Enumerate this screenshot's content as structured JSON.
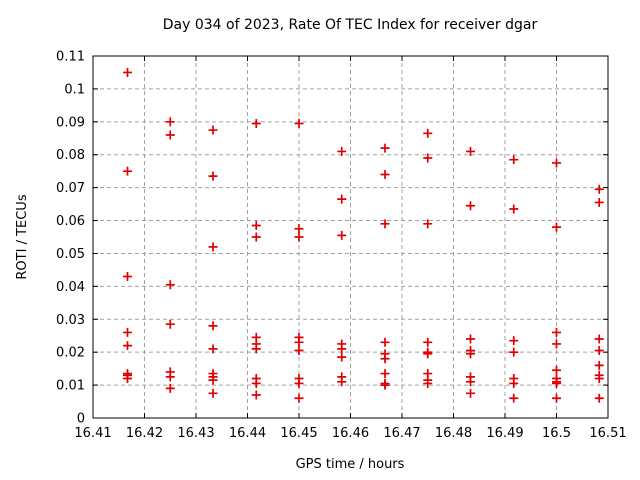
{
  "chart_data": {
    "type": "scatter",
    "title": "Day 034 of 2023, Rate Of TEC Index for receiver dgar",
    "xlabel": "GPS time / hours",
    "ylabel": "ROTI / TECUs",
    "xlim": [
      16.41,
      16.51
    ],
    "ylim": [
      0,
      0.11
    ],
    "xtick_values": [
      16.41,
      16.42,
      16.43,
      16.44,
      16.45,
      16.46,
      16.47,
      16.48,
      16.49,
      16.5,
      16.51
    ],
    "xtick_labels": [
      "16.41",
      "16.42",
      "16.43",
      "16.44",
      "16.45",
      "16.46",
      "16.47",
      "16.48",
      "16.49",
      "16.5",
      "16.51"
    ],
    "ytick_values": [
      0,
      0.01,
      0.02,
      0.03,
      0.04,
      0.05,
      0.06,
      0.07,
      0.08,
      0.09,
      0.1,
      0.11
    ],
    "ytick_labels": [
      "0",
      "0.01",
      "0.02",
      "0.03",
      "0.04",
      "0.05",
      "0.06",
      "0.07",
      "0.08",
      "0.09",
      "0.1",
      "0.11"
    ],
    "grid": true,
    "legend": "none",
    "marker": {
      "shape": "plus",
      "color": "#e10000"
    },
    "series": [
      {
        "name": "ROTI",
        "groups": [
          {
            "t": 16.4167,
            "values": [
              0.105,
              0.075,
              0.043,
              0.026,
              0.022,
              0.0135,
              0.013,
              0.012
            ]
          },
          {
            "t": 16.425,
            "values": [
              0.09,
              0.086,
              0.0405,
              0.0285,
              0.014,
              0.0125,
              0.009
            ]
          },
          {
            "t": 16.4333,
            "values": [
              0.0875,
              0.0735,
              0.052,
              0.028,
              0.021,
              0.0135,
              0.0125,
              0.0115,
              0.0075
            ]
          },
          {
            "t": 16.4417,
            "values": [
              0.0895,
              0.0585,
              0.055,
              0.0245,
              0.0225,
              0.021,
              0.012,
              0.0105,
              0.007
            ]
          },
          {
            "t": 16.45,
            "values": [
              0.0895,
              0.0575,
              0.055,
              0.0245,
              0.023,
              0.0205,
              0.012,
              0.0105,
              0.006
            ]
          },
          {
            "t": 16.4583,
            "values": [
              0.081,
              0.0665,
              0.0555,
              0.0225,
              0.021,
              0.0185,
              0.0125,
              0.011
            ]
          },
          {
            "t": 16.4667,
            "values": [
              0.082,
              0.074,
              0.059,
              0.023,
              0.0195,
              0.018,
              0.0135,
              0.0105,
              0.01
            ]
          },
          {
            "t": 16.475,
            "values": [
              0.0865,
              0.079,
              0.059,
              0.023,
              0.02,
              0.0195,
              0.0135,
              0.0115,
              0.0105
            ]
          },
          {
            "t": 16.4833,
            "values": [
              0.081,
              0.0645,
              0.024,
              0.0205,
              0.0195,
              0.0125,
              0.011,
              0.0075
            ]
          },
          {
            "t": 16.4917,
            "values": [
              0.0785,
              0.0635,
              0.0235,
              0.02,
              0.012,
              0.0105,
              0.006
            ]
          },
          {
            "t": 16.5,
            "values": [
              0.0775,
              0.058,
              0.026,
              0.0225,
              0.0145,
              0.012,
              0.011,
              0.0105,
              0.006
            ]
          },
          {
            "t": 16.5083,
            "values": [
              0.0695,
              0.0655,
              0.024,
              0.0205,
              0.016,
              0.013,
              0.012,
              0.006
            ]
          }
        ]
      }
    ]
  },
  "colors": {
    "marker": "#e10000",
    "grid": "#a0a0a0",
    "axis": "#000000",
    "background": "#ffffff"
  }
}
